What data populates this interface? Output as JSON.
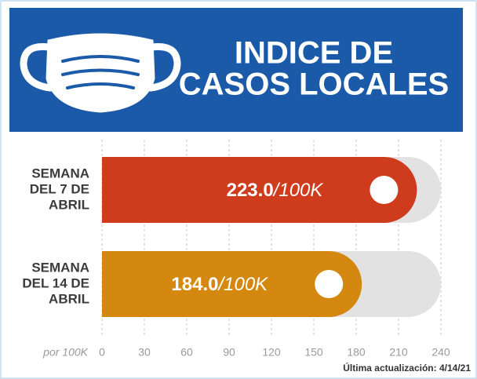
{
  "chart_data": {
    "type": "bar",
    "orientation": "horizontal",
    "title_lines": [
      "INDICE DE",
      "CASOS LOCALES"
    ],
    "categories": [
      [
        "SEMANA",
        "DEL 7 DE",
        "ABRIL"
      ],
      [
        "SEMANA",
        "DEL 14 DE",
        "ABRIL"
      ]
    ],
    "values": [
      223.0,
      184.0
    ],
    "value_labels": [
      "223.0",
      "184.0"
    ],
    "value_unit": "/100K",
    "colors": [
      "#cf3b1d",
      "#d4880f"
    ],
    "xlim": [
      0,
      240
    ],
    "xticks": [
      0,
      30,
      60,
      90,
      120,
      150,
      180,
      210,
      240
    ],
    "x_axis_label": "por 100K",
    "footnote": "Última actualización: 4/14/21",
    "grid": true
  }
}
